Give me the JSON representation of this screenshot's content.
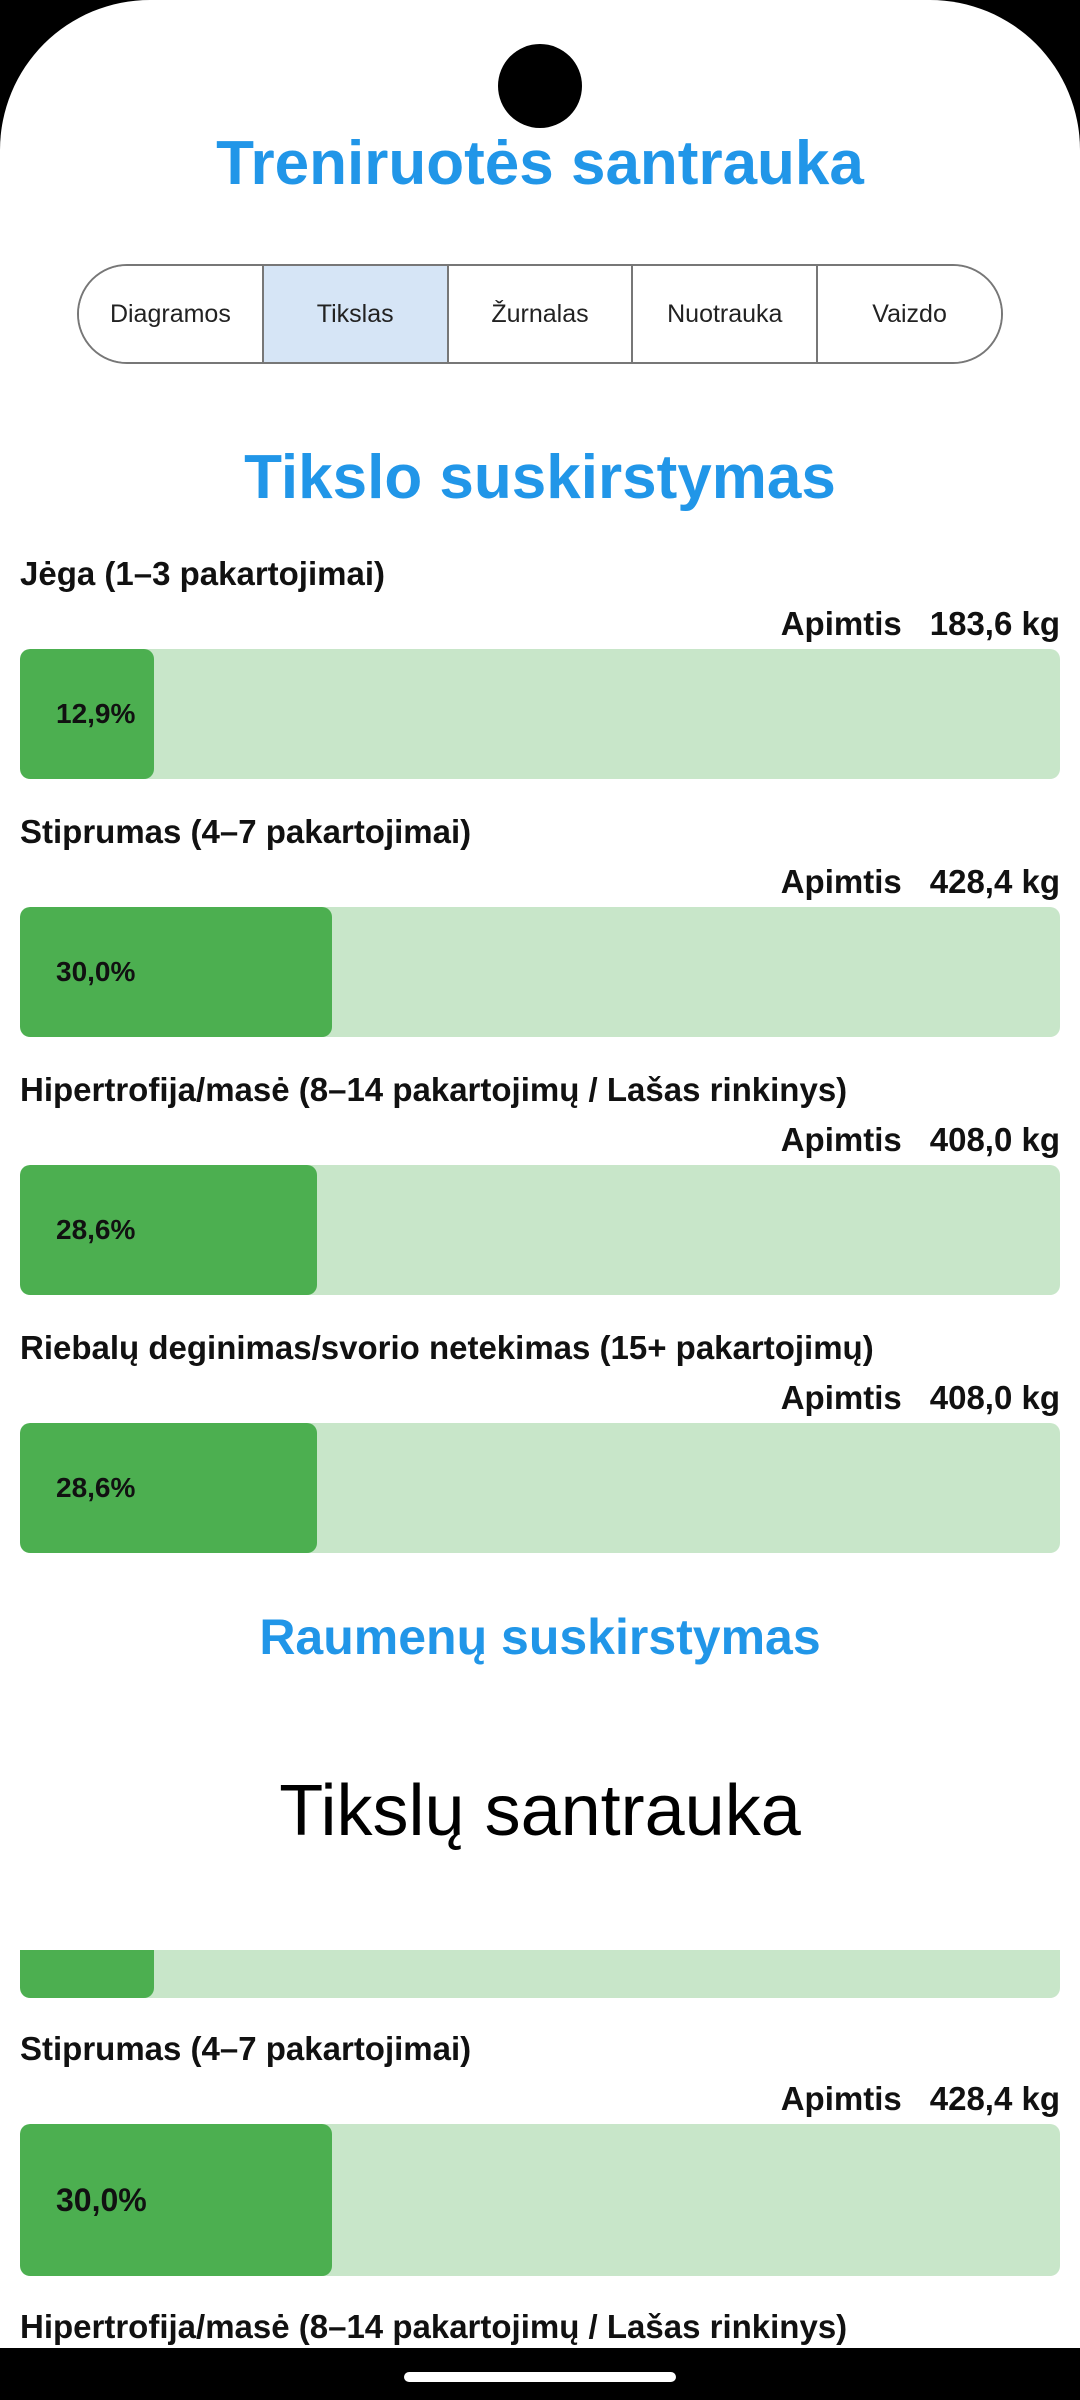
{
  "app": {
    "title": "Treniruotės santrauka"
  },
  "tabs": [
    {
      "label": "Diagramos",
      "active": false
    },
    {
      "label": "Tikslas",
      "active": true
    },
    {
      "label": "Žurnalas",
      "active": false
    },
    {
      "label": "Nuotrauka",
      "active": false
    },
    {
      "label": "Vaizdo",
      "active": false
    }
  ],
  "goal_section": {
    "title": "Tikslo suskirstymas",
    "volume_label": "Apimtis",
    "items": [
      {
        "label": "Jėga (1–3 pakartojimai)",
        "volume": "183,6 kg",
        "percent_text": "12,9%",
        "percent": 12.9
      },
      {
        "label": "Stiprumas (4–7 pakartojimai)",
        "volume": "428,4 kg",
        "percent_text": "30,0%",
        "percent": 30.0
      },
      {
        "label": "Hipertrofija/masė (8–14 pakartojimų / Lašas rinkinys)",
        "volume": "408,0 kg",
        "percent_text": "28,6%",
        "percent": 28.6
      },
      {
        "label": "Riebalų deginimas/svorio netekimas (15+ pakartojimų)",
        "volume": "408,0 kg",
        "percent_text": "28,6%",
        "percent": 28.6
      }
    ]
  },
  "muscle_section": {
    "title": "Raumenų suskirstymas"
  },
  "summary_section": {
    "title": "Tikslų santrauka",
    "partial_bar_percent": 12.9,
    "items": [
      {
        "label": "Stiprumas (4–7 pakartojimai)",
        "volume": "428,4 kg",
        "percent_text": "30,0%",
        "percent": 30.0
      },
      {
        "label": "Hipertrofija/masė (8–14 pakartojimų / Lašas rinkinys)"
      }
    ]
  },
  "colors": {
    "accent": "#2196e8",
    "bar_fill": "#4caf50",
    "bar_track": "#c8e6c9",
    "tab_active": "#d6e5f6"
  }
}
